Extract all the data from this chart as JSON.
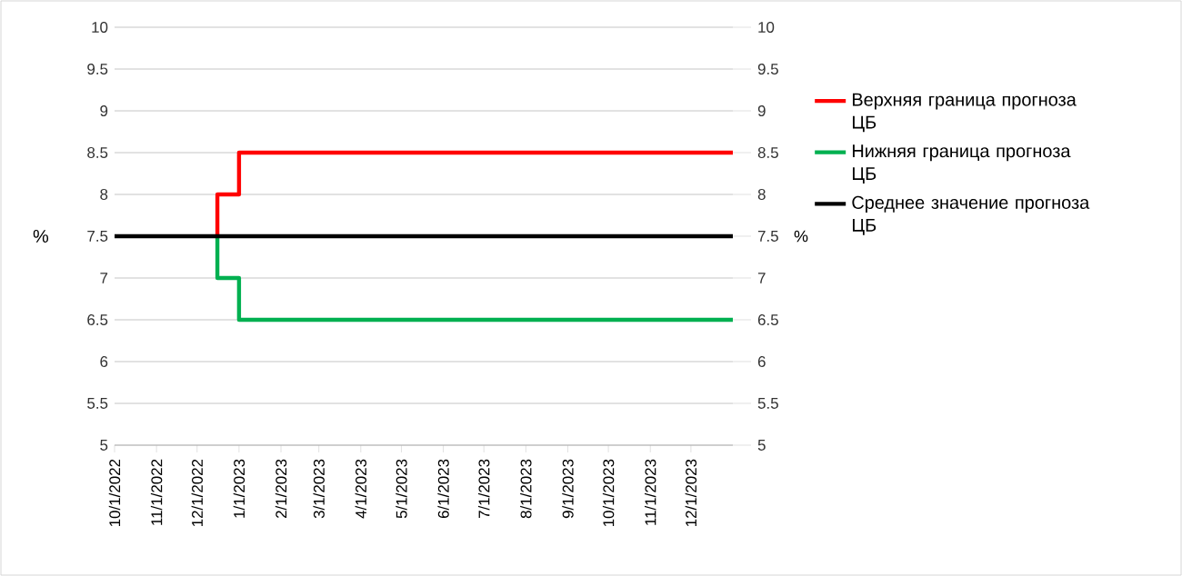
{
  "chart_data": {
    "type": "line",
    "ylabel": "%",
    "y2label": "%",
    "series": [
      {
        "name": "Верхняя граница прогноза ЦБ",
        "color": "#ff0000",
        "x": [
          "2022-12-16",
          "2022-12-16",
          "2023-01-01",
          "2023-01-01",
          "2024-01-01"
        ],
        "values": [
          7.5,
          8,
          8,
          8.5,
          8.5
        ]
      },
      {
        "name": "Нижняя граница прогноза ЦБ",
        "color": "#00b050",
        "x": [
          "2022-12-16",
          "2022-12-16",
          "2023-01-01",
          "2023-01-01",
          "2024-01-01"
        ],
        "values": [
          7.5,
          7,
          7,
          6.5,
          6.5
        ]
      },
      {
        "name": "Среднее значение прогноза ЦБ",
        "color": "#000000",
        "x": [
          "2022-10-01",
          "2024-01-01"
        ],
        "values": [
          7.5,
          7.5
        ]
      }
    ],
    "xlim": [
      "2022-10-01",
      "2024-01-01"
    ],
    "xticks": [
      {
        "value": "2022-10-01",
        "label": "10/1/2022"
      },
      {
        "value": "2022-11-01",
        "label": "11/1/2022"
      },
      {
        "value": "2022-12-01",
        "label": "12/1/2022"
      },
      {
        "value": "2023-01-01",
        "label": "1/1/2023"
      },
      {
        "value": "2023-02-01",
        "label": "2/1/2023"
      },
      {
        "value": "2023-03-01",
        "label": "3/1/2023"
      },
      {
        "value": "2023-04-01",
        "label": "4/1/2023"
      },
      {
        "value": "2023-05-01",
        "label": "5/1/2023"
      },
      {
        "value": "2023-06-01",
        "label": "6/1/2023"
      },
      {
        "value": "2023-07-01",
        "label": "7/1/2023"
      },
      {
        "value": "2023-08-01",
        "label": "8/1/2023"
      },
      {
        "value": "2023-09-01",
        "label": "9/1/2023"
      },
      {
        "value": "2023-10-01",
        "label": "10/1/2023"
      },
      {
        "value": "2023-11-01",
        "label": "11/1/2023"
      },
      {
        "value": "2023-12-01",
        "label": "12/1/2023"
      }
    ],
    "ylim": [
      5,
      10
    ],
    "yticks": [
      5,
      5.5,
      6,
      6.5,
      7,
      7.5,
      8,
      8.5,
      9,
      9.5,
      10
    ],
    "y2lim": [
      5,
      10
    ],
    "y2ticks": [
      5,
      5.5,
      6,
      6.5,
      7,
      7.5,
      8,
      8.5,
      9,
      9.5,
      10
    ],
    "grid": "y",
    "legend": "right",
    "marker": "none",
    "line_style": "solid"
  }
}
